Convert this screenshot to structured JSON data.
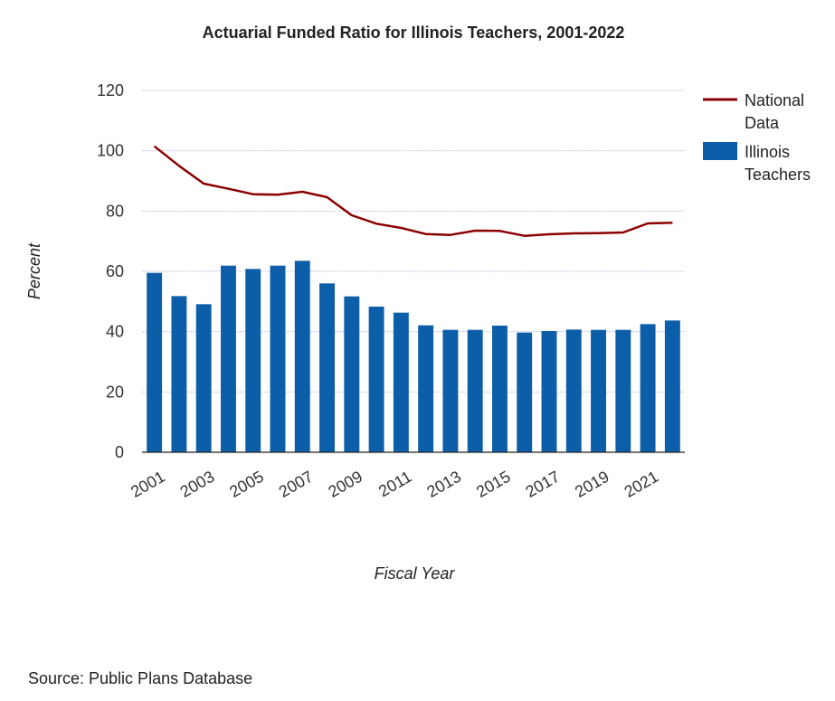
{
  "chart_data": {
    "type": "bar",
    "title": "Actuarial Funded Ratio for Illinois Teachers, 2001-2022",
    "xlabel": "Fiscal Year",
    "ylabel": "Percent",
    "ylim": [
      0,
      120
    ],
    "yticks": [
      0,
      20,
      40,
      60,
      80,
      100,
      120
    ],
    "grid": true,
    "legend_position": "right",
    "x": [
      2001,
      2002,
      2003,
      2004,
      2005,
      2006,
      2007,
      2008,
      2009,
      2010,
      2011,
      2012,
      2013,
      2014,
      2015,
      2016,
      2017,
      2018,
      2019,
      2020,
      2021,
      2022
    ],
    "xtick_labels": [
      "2001",
      "2003",
      "2005",
      "2007",
      "2009",
      "2011",
      "2013",
      "2015",
      "2017",
      "2019",
      "2021"
    ],
    "series": [
      {
        "name_lines": [
          "Illinois",
          "Teachers"
        ],
        "type": "bar",
        "color": "#0d5ea8",
        "values": [
          59.5,
          51.8,
          49.1,
          61.9,
          60.8,
          61.9,
          63.5,
          56.0,
          51.7,
          48.3,
          46.3,
          42.1,
          40.6,
          40.6,
          42.0,
          39.7,
          40.2,
          40.7,
          40.6,
          40.6,
          42.5,
          43.7
        ]
      },
      {
        "name_lines": [
          "National",
          "Data"
        ],
        "type": "line",
        "color": "#8b0000",
        "values": [
          101.5,
          95.0,
          89.1,
          87.4,
          85.6,
          85.4,
          86.4,
          84.6,
          78.6,
          75.8,
          74.4,
          72.4,
          72.1,
          73.5,
          73.4,
          71.8,
          72.3,
          72.6,
          72.7,
          72.9,
          75.9,
          76.1
        ]
      }
    ]
  },
  "source": "Source: Public Plans Database"
}
